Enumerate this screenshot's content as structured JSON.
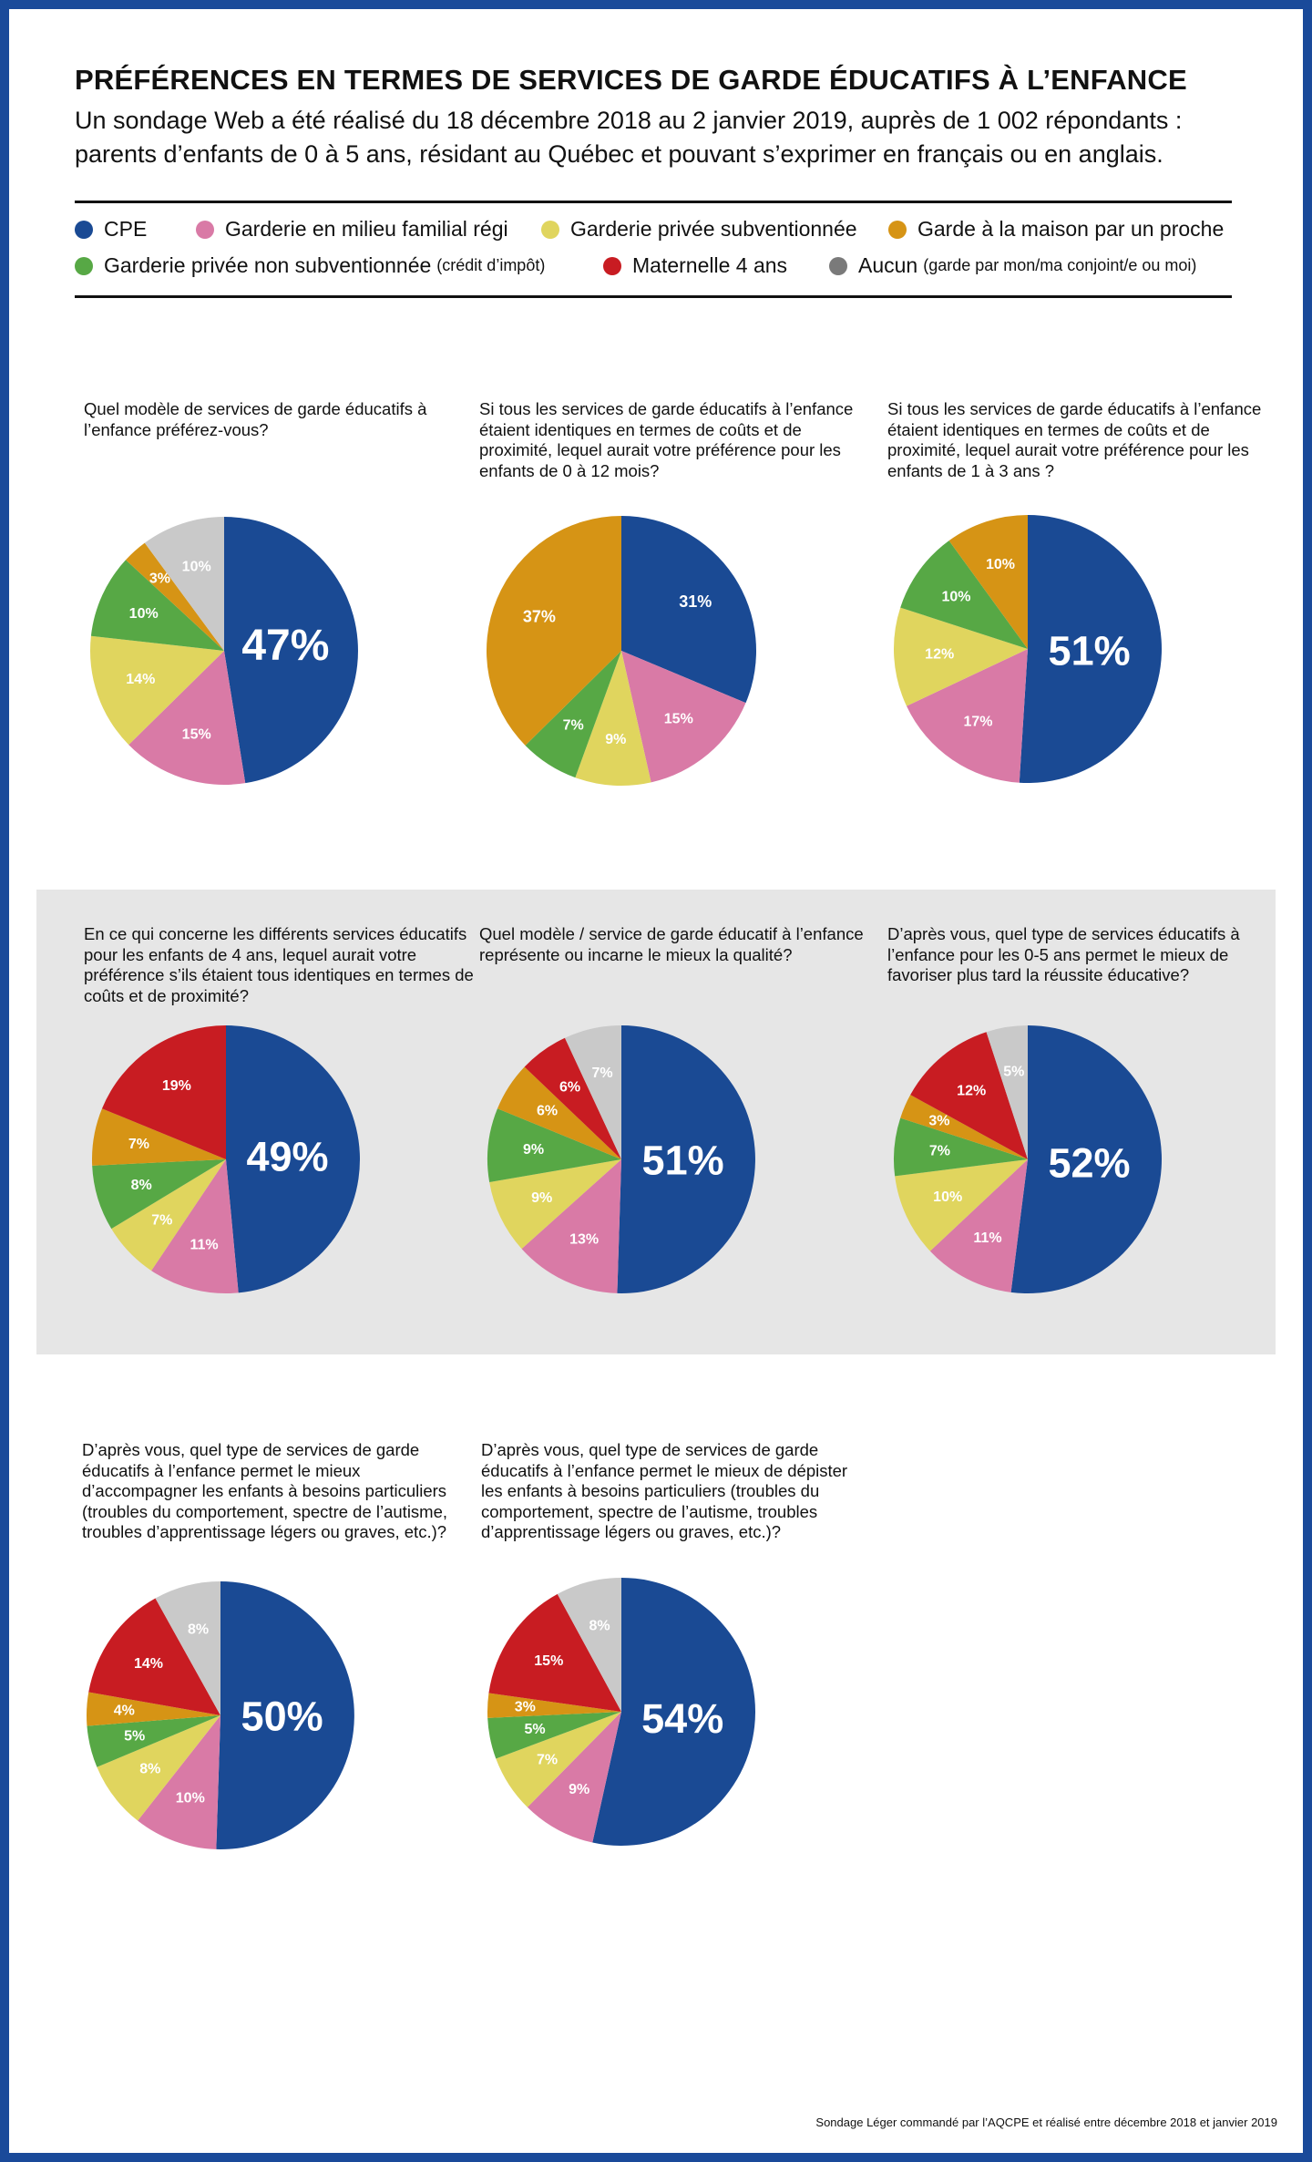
{
  "title": "PRÉFÉRENCES EN TERMES DE SERVICES DE GARDE ÉDUCATIFS À L’ENFANCE",
  "subtitle": "Un sondage Web a été réalisé du 18 décembre 2018 au 2 janvier 2019, auprès de 1 002 répondants : parents d’enfants de 0 à 5 ans, résidant au Québec et pouvant s’exprimer en français ou en anglais.",
  "legend": [
    {
      "key": "cpe",
      "label": "CPE",
      "note": "",
      "color": "#1a4a94"
    },
    {
      "key": "familial",
      "label": "Garderie en milieu familial régi",
      "note": "",
      "color": "#d97aa6"
    },
    {
      "key": "privee_sub",
      "label": "Garderie privée subventionnée",
      "note": "",
      "color": "#e0d55e"
    },
    {
      "key": "proche",
      "label": "Garde à la maison par un proche",
      "note": "",
      "color": "#d69415"
    },
    {
      "key": "privee_non_sub",
      "label": "Garderie privée non subventionnée",
      "note": "(crédit d’impôt)",
      "color": "#57a845"
    },
    {
      "key": "maternelle",
      "label": "Maternelle 4 ans",
      "note": "",
      "color": "#c81c22"
    },
    {
      "key": "aucun",
      "label": "Aucun",
      "note": "(garde par mon/ma conjoint/e ou moi)",
      "color": "#7a7a7a"
    }
  ],
  "chart_data": [
    {
      "type": "pie",
      "title": "Quel modèle de services de garde éducatifs à l’enfance préférez-vous?",
      "slices": [
        {
          "category": "CPE",
          "value": 47,
          "label": "47%"
        },
        {
          "category": "Garderie en milieu familial régi",
          "value": 15,
          "label": "15%"
        },
        {
          "category": "Garderie privée subventionnée",
          "value": 14,
          "label": "14%"
        },
        {
          "category": "Garderie privée non subventionnée",
          "value": 10,
          "label": "10%"
        },
        {
          "category": "Garde à la maison par un proche",
          "value": 3,
          "label": "3%"
        },
        {
          "category": "Aucun",
          "value": 10,
          "label": "10%"
        }
      ]
    },
    {
      "type": "pie",
      "title": "Si tous les services de garde éducatifs à l’enfance étaient identiques en termes de coûts et de proximité, lequel aurait votre préférence pour les enfants de 0 à 12 mois?",
      "slices": [
        {
          "category": "CPE",
          "value": 31,
          "label": "31%"
        },
        {
          "category": "Garderie en milieu familial régi",
          "value": 15,
          "label": "15%"
        },
        {
          "category": "Garderie privée subventionnée",
          "value": 9,
          "label": "9%"
        },
        {
          "category": "Garderie privée non subventionnée",
          "value": 7,
          "label": "7%"
        },
        {
          "category": "Garde à la maison par un proche",
          "value": 37,
          "label": "37%"
        }
      ]
    },
    {
      "type": "pie",
      "title": "Si tous les services de garde éducatifs à l’enfance étaient identiques en termes de coûts et de proximité, lequel aurait votre préférence pour les enfants de 1 à 3 ans ?",
      "slices": [
        {
          "category": "CPE",
          "value": 51,
          "label": "51%"
        },
        {
          "category": "Garderie en milieu familial régi",
          "value": 17,
          "label": "17%"
        },
        {
          "category": "Garderie privée subventionnée",
          "value": 12,
          "label": "12%"
        },
        {
          "category": "Garderie privée non subventionnée",
          "value": 10,
          "label": "10%"
        },
        {
          "category": "Garde à la maison par un proche",
          "value": 10,
          "label": "10%"
        }
      ]
    },
    {
      "type": "pie",
      "title": "En ce qui concerne les différents services éducatifs pour les enfants de 4 ans, lequel aurait votre préférence s’ils étaient tous identiques en termes de coûts et de proximité?",
      "slices": [
        {
          "category": "CPE",
          "value": 49,
          "label": "49%"
        },
        {
          "category": "Garderie en milieu familial régi",
          "value": 11,
          "label": "11%"
        },
        {
          "category": "Garderie privée subventionnée",
          "value": 7,
          "label": "7%"
        },
        {
          "category": "Garderie privée non subventionnée",
          "value": 8,
          "label": "8%"
        },
        {
          "category": "Garde à la maison par un proche",
          "value": 7,
          "label": "7%"
        },
        {
          "category": "Maternelle 4 ans",
          "value": 19,
          "label": "19%"
        }
      ]
    },
    {
      "type": "pie",
      "title": "Quel modèle / service de garde éducatif à l’enfance représente ou incarne le mieux la qualité?",
      "slices": [
        {
          "category": "CPE",
          "value": 51,
          "label": "51%"
        },
        {
          "category": "Garderie en milieu familial régi",
          "value": 13,
          "label": "13%"
        },
        {
          "category": "Garderie privée subventionnée",
          "value": 9,
          "label": "9%"
        },
        {
          "category": "Garderie privée non subventionnée",
          "value": 9,
          "label": "9%"
        },
        {
          "category": "Garde à la maison par un proche",
          "value": 6,
          "label": "6%"
        },
        {
          "category": "Maternelle 4 ans",
          "value": 6,
          "label": "6%"
        },
        {
          "category": "Aucun",
          "value": 7,
          "label": "7%"
        }
      ]
    },
    {
      "type": "pie",
      "title": "D’après vous, quel type de services éducatifs à l’enfance pour les 0-5 ans permet le mieux de favoriser plus tard la réussite éducative?",
      "slices": [
        {
          "category": "CPE",
          "value": 52,
          "label": "52%"
        },
        {
          "category": "Garderie en milieu familial régi",
          "value": 11,
          "label": "11%"
        },
        {
          "category": "Garderie privée subventionnée",
          "value": 10,
          "label": "10%"
        },
        {
          "category": "Garderie privée non subventionnée",
          "value": 7,
          "label": "7%"
        },
        {
          "category": "Garde à la maison par un proche",
          "value": 3,
          "label": "3%"
        },
        {
          "category": "Maternelle 4 ans",
          "value": 12,
          "label": "12%"
        },
        {
          "category": "Aucun",
          "value": 5,
          "label": "5%"
        }
      ]
    },
    {
      "type": "pie",
      "title": "D’après vous, quel type de services de garde éducatifs à l’enfance permet le mieux d’accompagner les enfants à besoins particuliers (troubles du comportement, spectre de l’autisme, troubles d’apprentissage légers ou graves, etc.)?",
      "slices": [
        {
          "category": "CPE",
          "value": 50,
          "label": "50%"
        },
        {
          "category": "Garderie en milieu familial régi",
          "value": 10,
          "label": "10%"
        },
        {
          "category": "Garderie privée subventionnée",
          "value": 8,
          "label": "8%"
        },
        {
          "category": "Garderie privée non subventionnée",
          "value": 5,
          "label": "5%"
        },
        {
          "category": "Garde à la maison par un proche",
          "value": 4,
          "label": "4%"
        },
        {
          "category": "Maternelle 4 ans",
          "value": 14,
          "label": "14%"
        },
        {
          "category": "Aucun",
          "value": 8,
          "label": "8%"
        }
      ]
    },
    {
      "type": "pie",
      "title": "D’après vous, quel type de services de garde éducatifs à l’enfance permet le mieux de dépister les enfants à besoins particuliers (troubles du comportement, spectre de l’autisme, troubles d’apprentissage légers ou graves, etc.)?",
      "slices": [
        {
          "category": "CPE",
          "value": 54,
          "label": "54%"
        },
        {
          "category": "Garderie en milieu familial régi",
          "value": 9,
          "label": "9%"
        },
        {
          "category": "Garderie privée subventionnée",
          "value": 7,
          "label": "7%"
        },
        {
          "category": "Garderie privée non subventionnée",
          "value": 5,
          "label": "5%"
        },
        {
          "category": "Garde à la maison par un proche",
          "value": 3,
          "label": "3%"
        },
        {
          "category": "Maternelle 4 ans",
          "value": 15,
          "label": "15%"
        },
        {
          "category": "Aucun",
          "value": 8,
          "label": "8%"
        }
      ]
    }
  ],
  "pie_palette": {
    "CPE": "#1a4a94",
    "Garderie en milieu familial régi": "#d97aa6",
    "Garderie privée subventionnée": "#e0d55e",
    "Garde à la maison par un proche": "#d69415",
    "Garderie privée non subventionnée": "#57a845",
    "Maternelle 4 ans": "#c81c22",
    "Aucun": "#c9c9c9"
  },
  "footnote": "Sondage Léger commandé par l’AQCPE et réalisé entre décembre 2018 et janvier 2019"
}
